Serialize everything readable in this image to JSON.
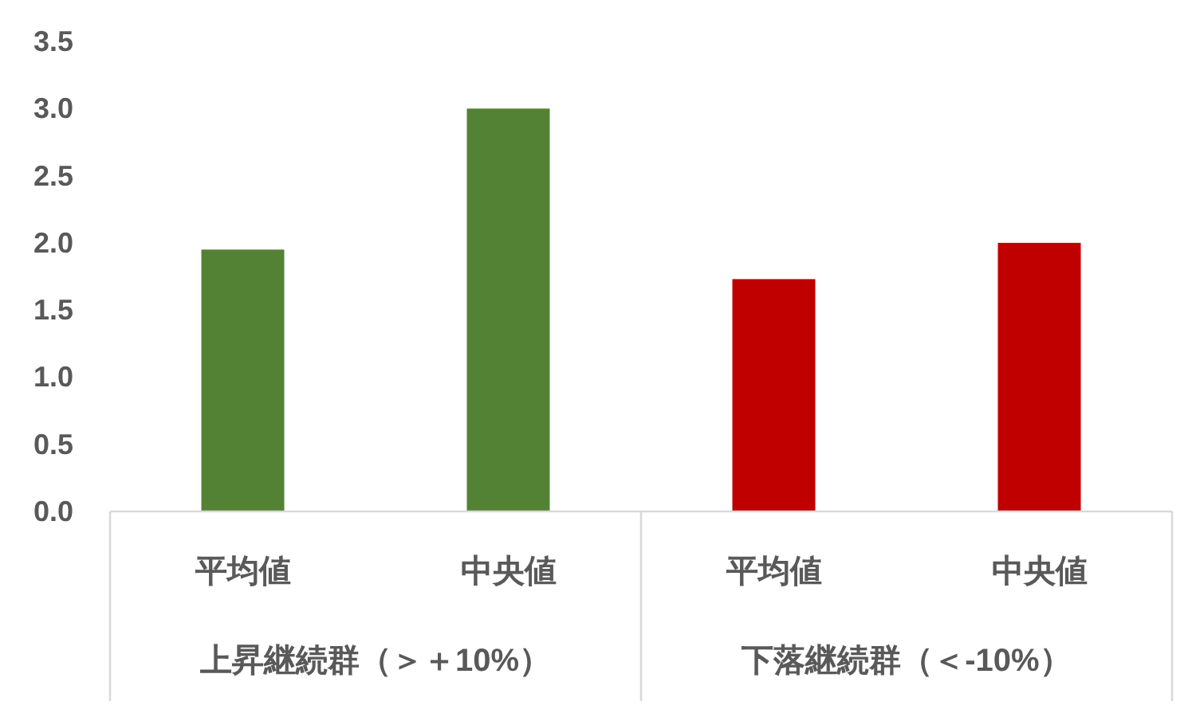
{
  "chart_data": {
    "type": "bar",
    "categories": [
      "平均値",
      "中央値",
      "平均値",
      "中央値"
    ],
    "values": [
      1.95,
      3.0,
      1.73,
      2.0
    ],
    "colors": [
      "#548235",
      "#548235",
      "#c00000",
      "#c00000"
    ],
    "ylim": [
      0,
      3.5
    ],
    "yticks": [
      {
        "value": 0,
        "label": "0.0"
      },
      {
        "value": 0.5,
        "label": "0.5"
      },
      {
        "value": 1,
        "label": "1.0"
      },
      {
        "value": 1.5,
        "label": "1.5"
      },
      {
        "value": 2,
        "label": "2.0"
      },
      {
        "value": 2.5,
        "label": "2.5"
      },
      {
        "value": 3,
        "label": "3.0"
      },
      {
        "value": 3.5,
        "label": "3.5"
      }
    ],
    "annotations": [
      "上昇継続群（＞＋10%）",
      "下落継続群（＜-10%）"
    ]
  }
}
